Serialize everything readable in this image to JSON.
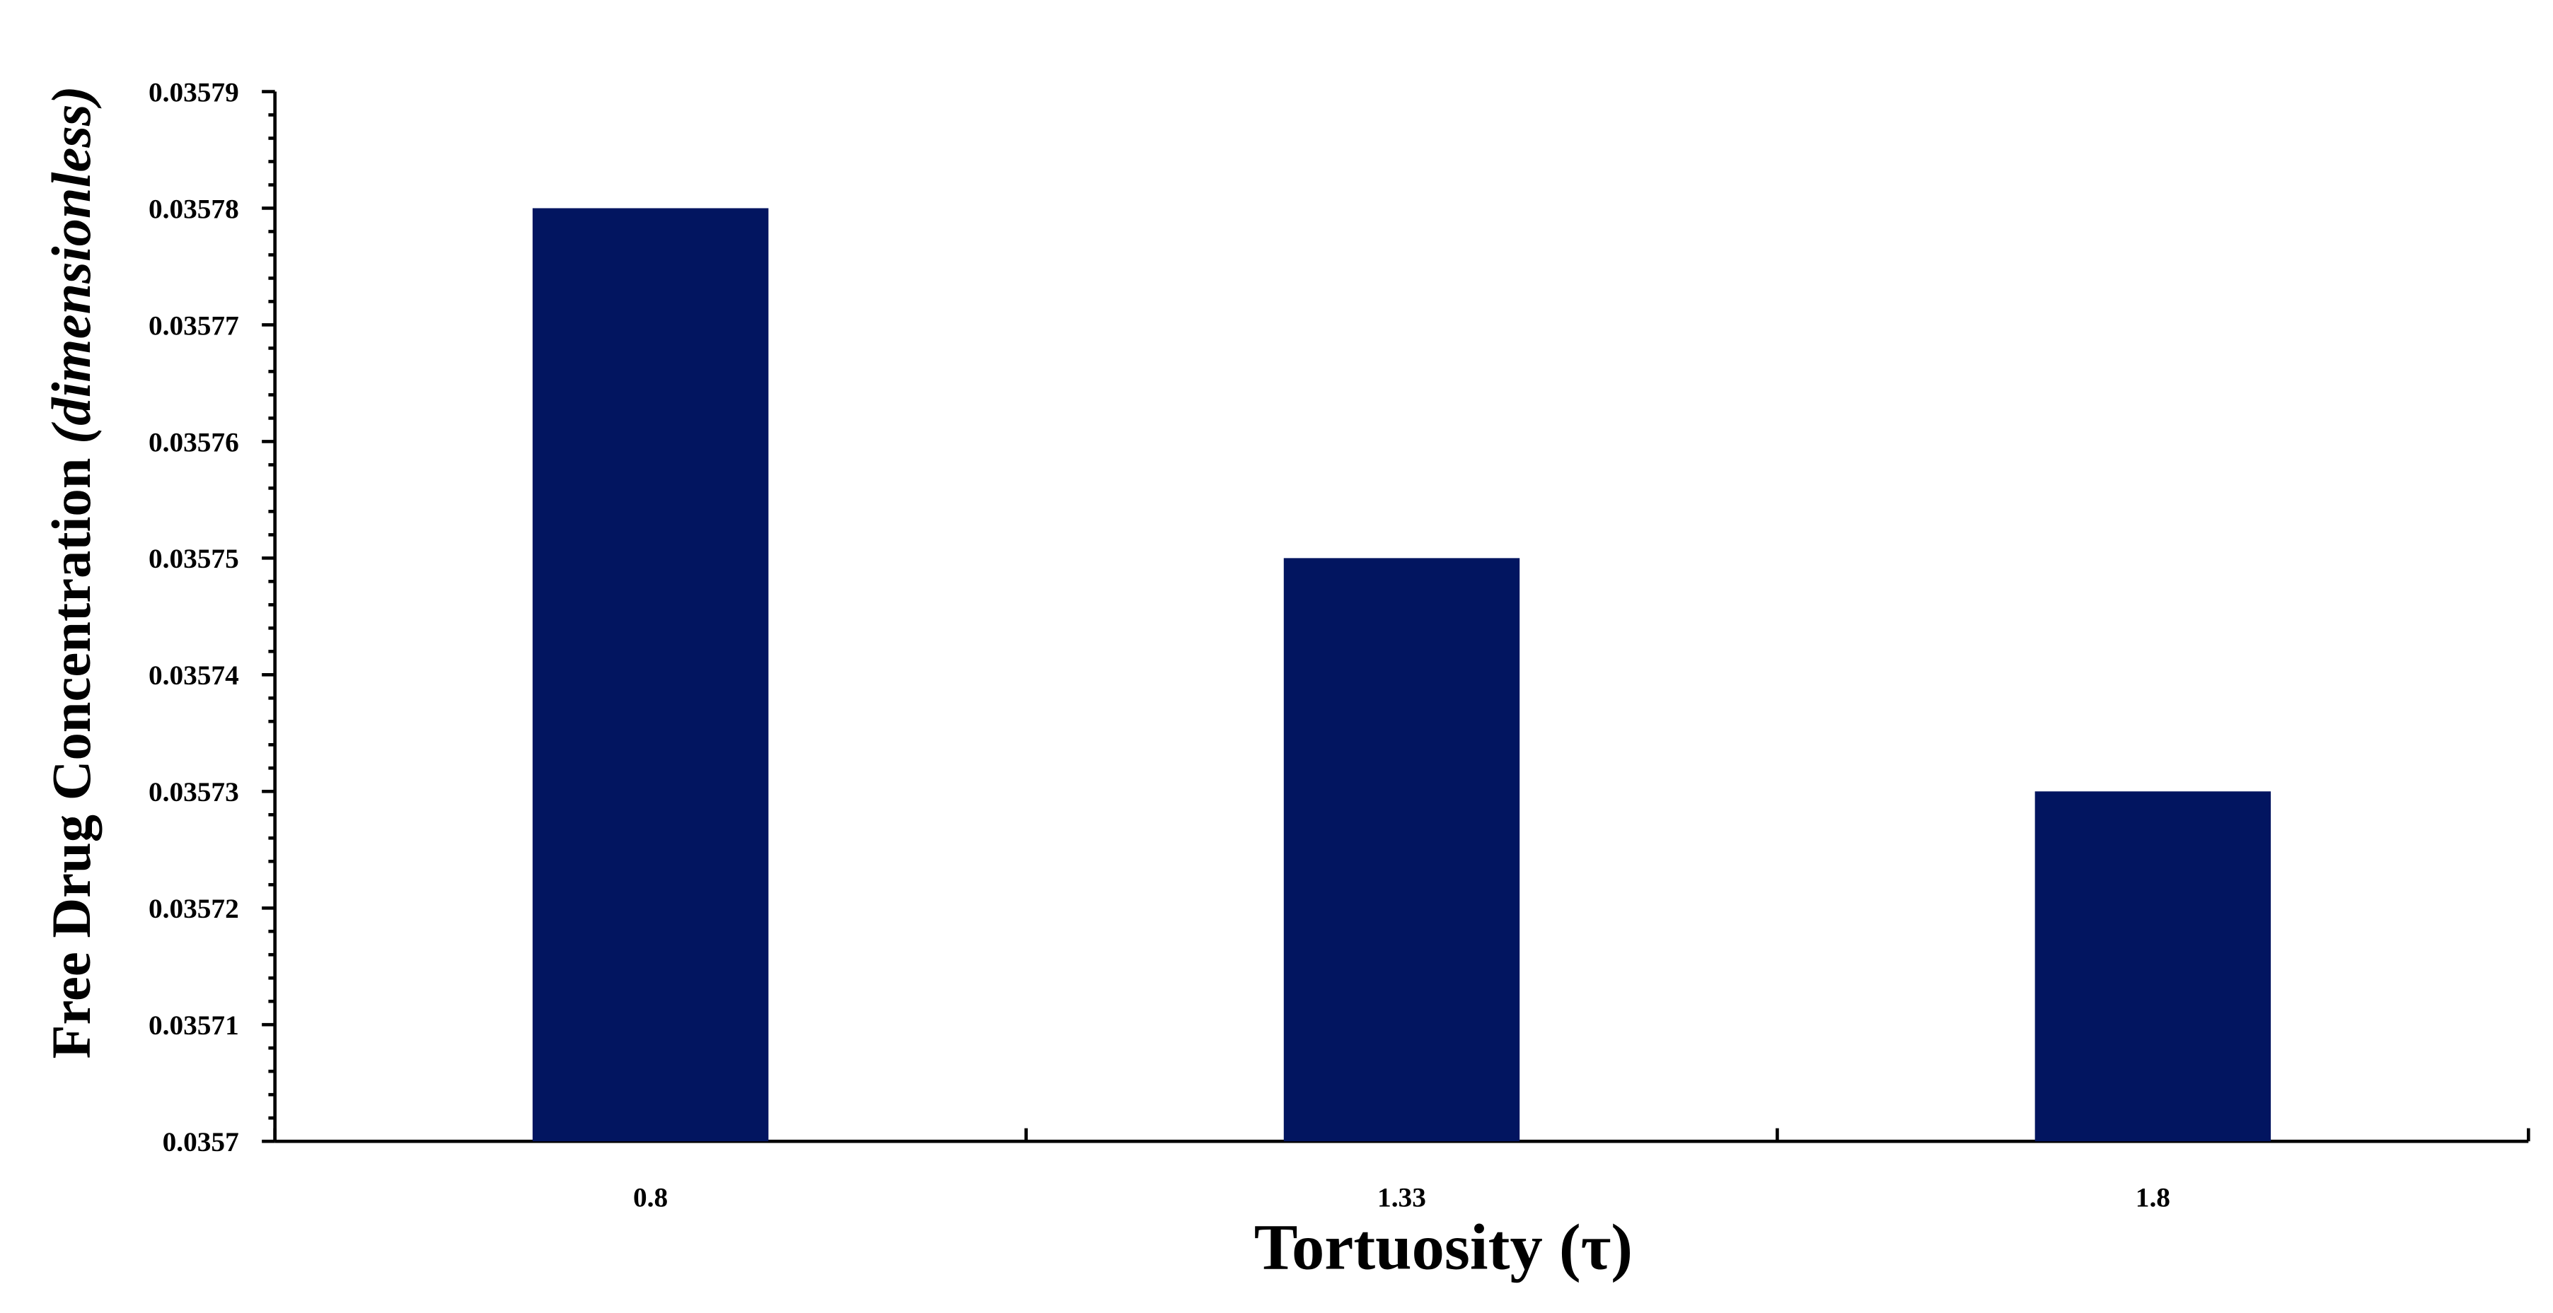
{
  "chart_data": {
    "type": "bar",
    "x_label": "Tortuosity (τ)",
    "y_label": "Free Drug Concentration",
    "y_label_unit": "(dimensionless)",
    "categories": [
      "0.8",
      "1.33",
      "1.8"
    ],
    "values": [
      0.03578,
      0.03575,
      0.03573
    ],
    "color": "#021560",
    "ylim": [
      0.0357,
      0.03579
    ],
    "yticks": [
      0.0357,
      0.03571,
      0.03572,
      0.03573,
      0.03574,
      0.03575,
      0.03576,
      0.03577,
      0.03578,
      0.03579
    ],
    "grid": false
  }
}
